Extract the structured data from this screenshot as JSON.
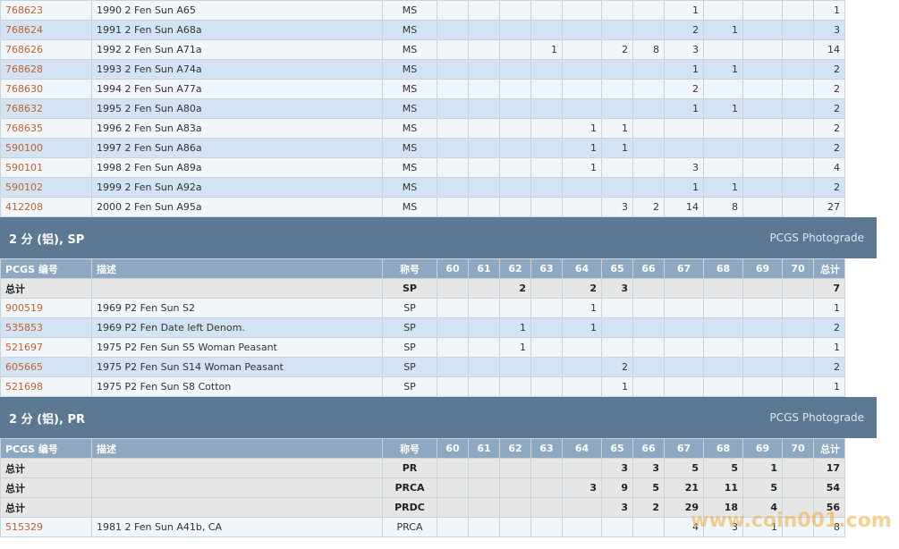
{
  "ms_rows": [
    {
      "code": "768623",
      "desc": "1990 2 Fen Sun  A65",
      "grade": "MS",
      "g": [
        "",
        "",
        "",
        "",
        "",
        "",
        "",
        "1",
        "",
        "",
        "",
        ""
      ],
      "total": "1"
    },
    {
      "code": "768624",
      "desc": "1991 2 Fen Sun  A68a",
      "grade": "MS",
      "g": [
        "",
        "",
        "",
        "",
        "",
        "",
        "",
        "2",
        "1",
        "",
        "",
        ""
      ],
      "total": "3"
    },
    {
      "code": "768626",
      "desc": "1992 2 Fen Sun  A71a",
      "grade": "MS",
      "g": [
        "",
        "",
        "",
        "1",
        "",
        "2",
        "8",
        "3",
        "",
        "",
        "",
        ""
      ],
      "total": "14"
    },
    {
      "code": "768628",
      "desc": "1993 2 Fen Sun  A74a",
      "grade": "MS",
      "g": [
        "",
        "",
        "",
        "",
        "",
        "",
        "",
        "1",
        "1",
        "",
        "",
        ""
      ],
      "total": "2"
    },
    {
      "code": "768630",
      "desc": "1994 2 Fen Sun  A77a",
      "grade": "MS",
      "g": [
        "",
        "",
        "",
        "",
        "",
        "",
        "",
        "2",
        "",
        "",
        "",
        ""
      ],
      "total": "2"
    },
    {
      "code": "768632",
      "desc": "1995 2 Fen Sun  A80a",
      "grade": "MS",
      "g": [
        "",
        "",
        "",
        "",
        "",
        "",
        "",
        "1",
        "1",
        "",
        "",
        ""
      ],
      "total": "2"
    },
    {
      "code": "768635",
      "desc": "1996 2 Fen Sun  A83a",
      "grade": "MS",
      "g": [
        "",
        "",
        "",
        "",
        "1",
        "1",
        "",
        "",
        "",
        "",
        "",
        ""
      ],
      "total": "2"
    },
    {
      "code": "590100",
      "desc": "1997 2 Fen Sun  A86a",
      "grade": "MS",
      "g": [
        "",
        "",
        "",
        "",
        "1",
        "1",
        "",
        "",
        "",
        "",
        "",
        ""
      ],
      "total": "2"
    },
    {
      "code": "590101",
      "desc": "1998 2 Fen Sun  A89a",
      "grade": "MS",
      "g": [
        "",
        "",
        "",
        "",
        "1",
        "",
        "",
        "3",
        "",
        "",
        "",
        ""
      ],
      "total": "4"
    },
    {
      "code": "590102",
      "desc": "1999 2 Fen Sun  A92a",
      "grade": "MS",
      "g": [
        "",
        "",
        "",
        "",
        "",
        "",
        "",
        "1",
        "1",
        "",
        "",
        ""
      ],
      "total": "2"
    },
    {
      "code": "412208",
      "desc": "2000 2 Fen Sun  A95a",
      "grade": "MS",
      "g": [
        "",
        "",
        "",
        "",
        "",
        "3",
        "2",
        "14",
        "8",
        "",
        "",
        ""
      ],
      "total": "27"
    }
  ],
  "sp_section": {
    "title": "2 分 (铝), SP",
    "photograde": "PCGS Photograde"
  },
  "pr_section": {
    "title": "2 分 (铝), PR",
    "photograde": "PCGS Photograde"
  },
  "header": {
    "code": "PCGS 编号",
    "desc": "描述",
    "grade": "称号",
    "cols": [
      "60",
      "61",
      "62",
      "63",
      "64",
      "65",
      "66",
      "67",
      "68",
      "69",
      "70"
    ],
    "total": "总计"
  },
  "sp_totals": [
    {
      "label": "总计",
      "grade": "SP",
      "g": [
        "",
        "",
        "2",
        "",
        "2",
        "3",
        "",
        "",
        "",
        "",
        ""
      ],
      "total": "7"
    }
  ],
  "sp_rows": [
    {
      "code": "900519",
      "desc": "1969 P2 Fen Sun  S2",
      "grade": "SP",
      "g": [
        "",
        "",
        "",
        "",
        "1",
        "",
        "",
        "",
        "",
        "",
        ""
      ],
      "total": "1"
    },
    {
      "code": "535853",
      "desc": "1969 P2 Fen Date left Denom.",
      "grade": "SP",
      "g": [
        "",
        "",
        "1",
        "",
        "1",
        "",
        "",
        "",
        "",
        "",
        ""
      ],
      "total": "2"
    },
    {
      "code": "521697",
      "desc": "1975 P2 Fen Sun  S5    Woman Peasant",
      "grade": "SP",
      "g": [
        "",
        "",
        "1",
        "",
        "",
        "",
        "",
        "",
        "",
        "",
        ""
      ],
      "total": "1"
    },
    {
      "code": "605665",
      "desc": "1975 P2 Fen Sun  S14    Woman Peasant",
      "grade": "SP",
      "g": [
        "",
        "",
        "",
        "",
        "",
        "2",
        "",
        "",
        "",
        "",
        ""
      ],
      "total": "2"
    },
    {
      "code": "521698",
      "desc": "1975 P2 Fen Sun  S8    Cotton",
      "grade": "SP",
      "g": [
        "",
        "",
        "",
        "",
        "",
        "1",
        "",
        "",
        "",
        "",
        ""
      ],
      "total": "1"
    }
  ],
  "pr_totals": [
    {
      "label": "总计",
      "grade": "PR",
      "g": [
        "",
        "",
        "",
        "",
        "",
        "3",
        "3",
        "5",
        "5",
        "1",
        ""
      ],
      "total": "17"
    },
    {
      "label": "总计",
      "grade": "PRCA",
      "g": [
        "",
        "",
        "",
        "",
        "3",
        "9",
        "5",
        "21",
        "11",
        "5",
        ""
      ],
      "total": "54"
    },
    {
      "label": "总计",
      "grade": "PRDC",
      "g": [
        "",
        "",
        "",
        "",
        "",
        "3",
        "2",
        "29",
        "18",
        "4",
        ""
      ],
      "total": "56"
    }
  ],
  "pr_rows": [
    {
      "code": "515329",
      "desc": "1981 2 Fen Sun  A41b, CA",
      "grade": "PRCA",
      "g": [
        "",
        "",
        "",
        "",
        "",
        "",
        "",
        "4",
        "3",
        "1",
        ""
      ],
      "total": "8"
    }
  ],
  "watermark": "www.coin001.com"
}
